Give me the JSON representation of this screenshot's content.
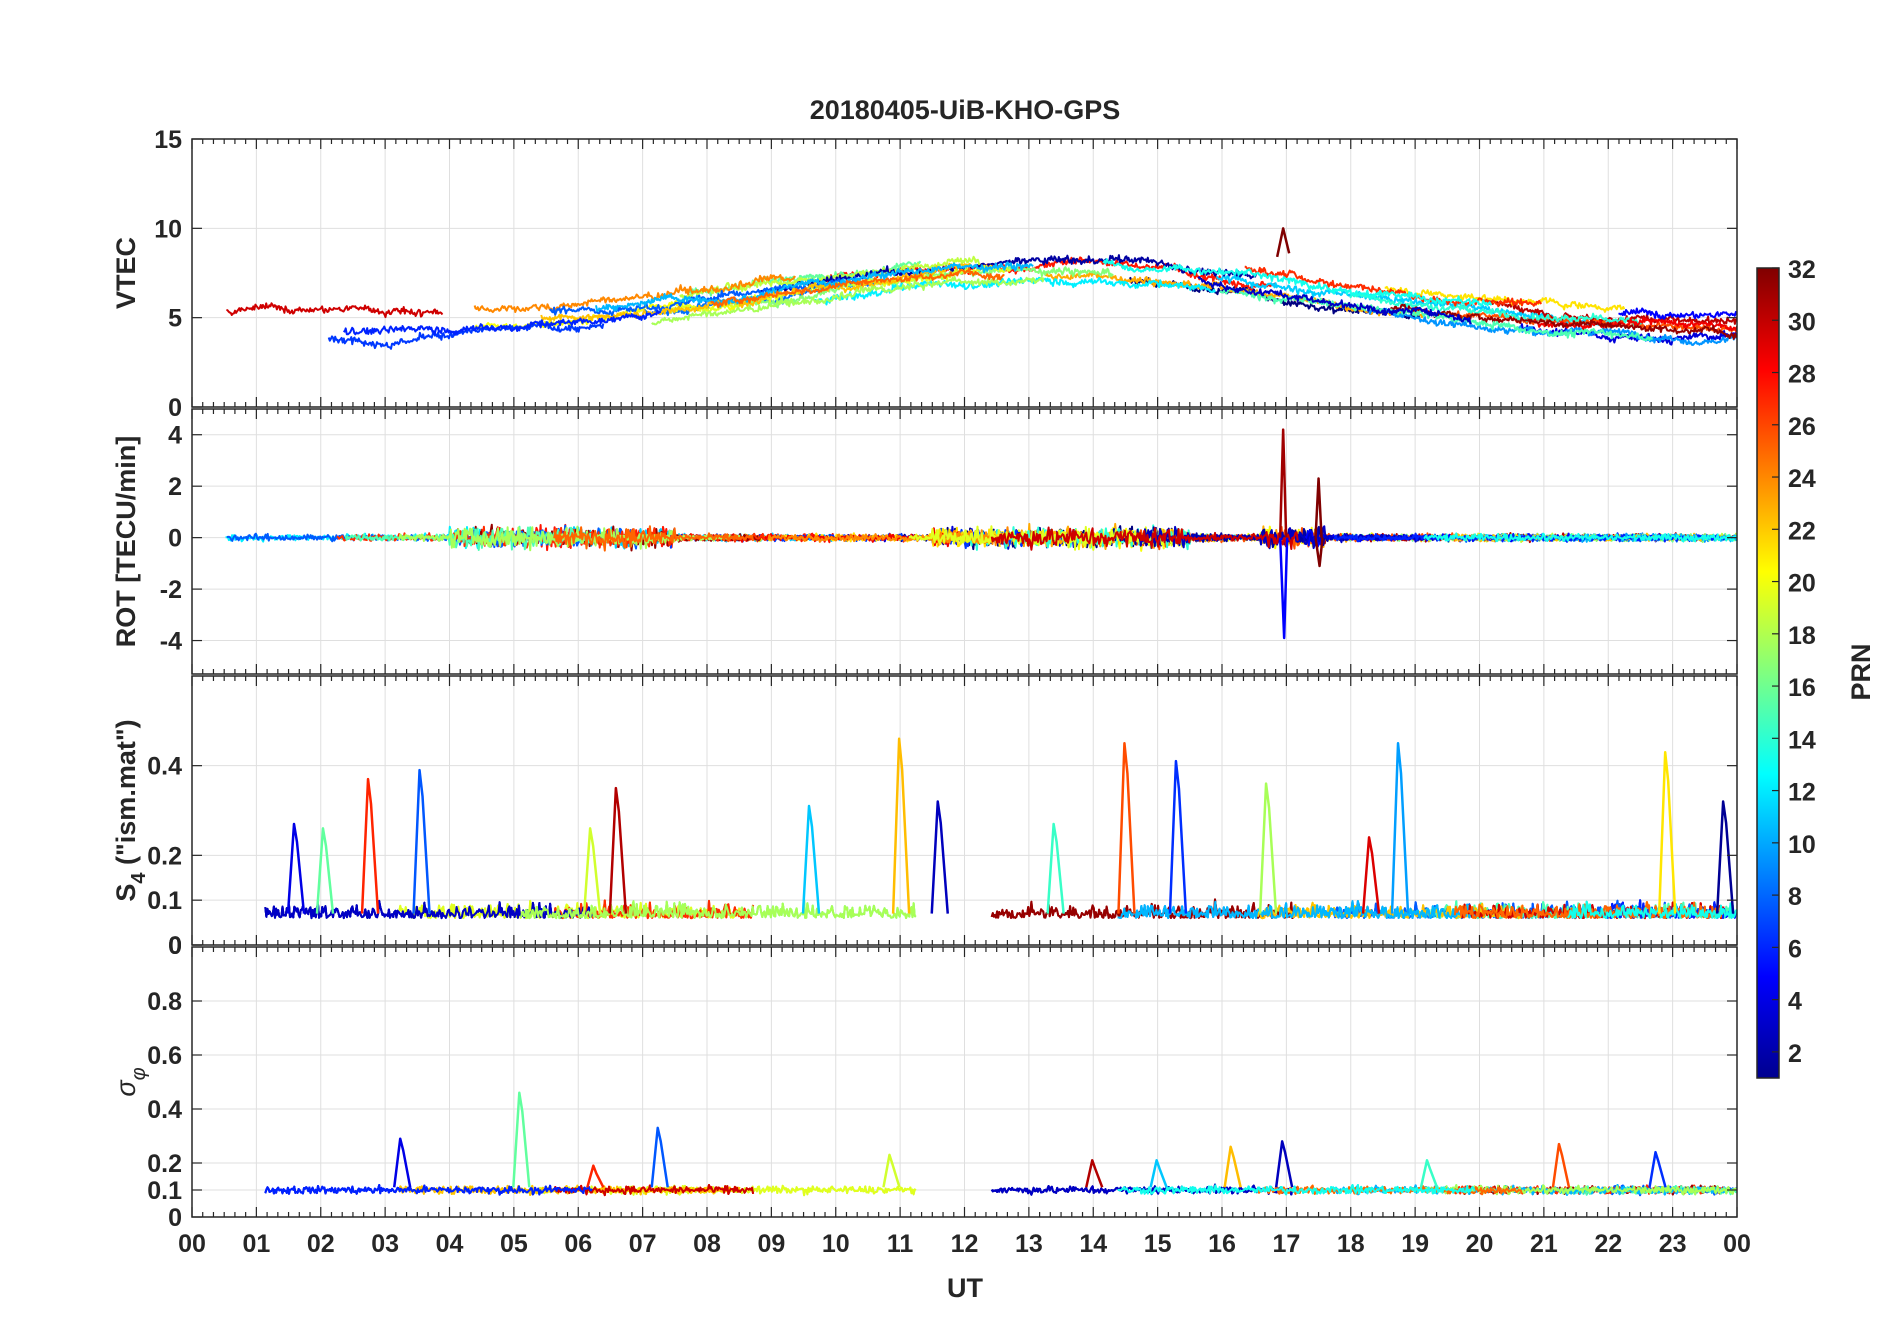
{
  "chart_data": {
    "type": "line",
    "title": "20180405-UiB-KHO-GPS",
    "xlabel": "UT",
    "x_ticks": [
      "00",
      "01",
      "02",
      "03",
      "04",
      "05",
      "06",
      "07",
      "08",
      "09",
      "10",
      "11",
      "12",
      "13",
      "14",
      "15",
      "16",
      "17",
      "18",
      "19",
      "20",
      "21",
      "22",
      "23",
      "00"
    ],
    "x_range_hours": [
      0,
      24
    ],
    "grid": true,
    "colorbar": {
      "label": "PRN",
      "range": [
        1,
        32
      ],
      "ticks": [
        "2",
        "4",
        "6",
        "8",
        "10",
        "12",
        "14",
        "16",
        "18",
        "20",
        "22",
        "24",
        "26",
        "28",
        "30",
        "32"
      ],
      "colormap": "jet",
      "placement": "right"
    },
    "panels": [
      {
        "id": "vtec",
        "ylabel": "VTEC",
        "ylim": [
          0,
          15
        ],
        "y_ticks": [
          "0",
          "5",
          "10",
          "15"
        ],
        "description_baseline": "diurnal TEC 3-10 TECU, peak near 12-17 UT",
        "events": [
          {
            "t": 16.95,
            "v": 10
          }
        ]
      },
      {
        "id": "rot",
        "ylabel": "ROT [TECU/min]",
        "ylim": [
          -5.3,
          5
        ],
        "y_ticks": [
          "-4",
          "-2",
          "0",
          "2",
          "4"
        ],
        "events": [
          {
            "t": 16.95,
            "max": 4.2,
            "min": -3.9
          },
          {
            "t": 17.5,
            "max": 2.3,
            "min": -1.1
          }
        ]
      },
      {
        "id": "s4",
        "ylabel_main": "S",
        "ylabel_sub": "4",
        "ylabel_rest": " (\"ism.mat\")",
        "ylim": [
          0,
          0.6
        ],
        "y_ticks": [
          "0",
          "0",
          "0.1",
          "0.2",
          "0.4"
        ],
        "peaks": [
          {
            "t": 1.6,
            "v": 0.27
          },
          {
            "t": 2.05,
            "v": 0.26
          },
          {
            "t": 2.75,
            "v": 0.37
          },
          {
            "t": 3.55,
            "v": 0.39
          },
          {
            "t": 6.2,
            "v": 0.26
          },
          {
            "t": 6.6,
            "v": 0.35
          },
          {
            "t": 9.6,
            "v": 0.31
          },
          {
            "t": 11.0,
            "v": 0.46
          },
          {
            "t": 11.6,
            "v": 0.32
          },
          {
            "t": 13.4,
            "v": 0.27
          },
          {
            "t": 14.5,
            "v": 0.45
          },
          {
            "t": 15.3,
            "v": 0.41
          },
          {
            "t": 16.7,
            "v": 0.36
          },
          {
            "t": 18.3,
            "v": 0.24
          },
          {
            "t": 18.75,
            "v": 0.45
          },
          {
            "t": 22.9,
            "v": 0.43
          },
          {
            "t": 23.8,
            "v": 0.32
          }
        ]
      },
      {
        "id": "sigma_phi",
        "ylabel_main": "σ",
        "ylabel_sub": "φ",
        "ylim": [
          0,
          1
        ],
        "y_ticks": [
          "0",
          "0.1",
          "0.2",
          "0.4",
          "0.6",
          "0.8"
        ],
        "peaks": [
          {
            "t": 3.25,
            "v": 0.29
          },
          {
            "t": 5.1,
            "v": 0.46
          },
          {
            "t": 6.25,
            "v": 0.19
          },
          {
            "t": 7.25,
            "v": 0.33
          },
          {
            "t": 10.85,
            "v": 0.23
          },
          {
            "t": 14.0,
            "v": 0.21
          },
          {
            "t": 15.0,
            "v": 0.21
          },
          {
            "t": 16.15,
            "v": 0.26
          },
          {
            "t": 16.95,
            "v": 0.28
          },
          {
            "t": 19.2,
            "v": 0.21
          },
          {
            "t": 21.25,
            "v": 0.27
          },
          {
            "t": 22.75,
            "v": 0.24
          }
        ]
      }
    ],
    "series_colors_sample": [
      "#00008f",
      "#0000ff",
      "#0080ff",
      "#00ffff",
      "#80ff80",
      "#ffff00",
      "#ff8000",
      "#ff0000",
      "#800000"
    ]
  }
}
